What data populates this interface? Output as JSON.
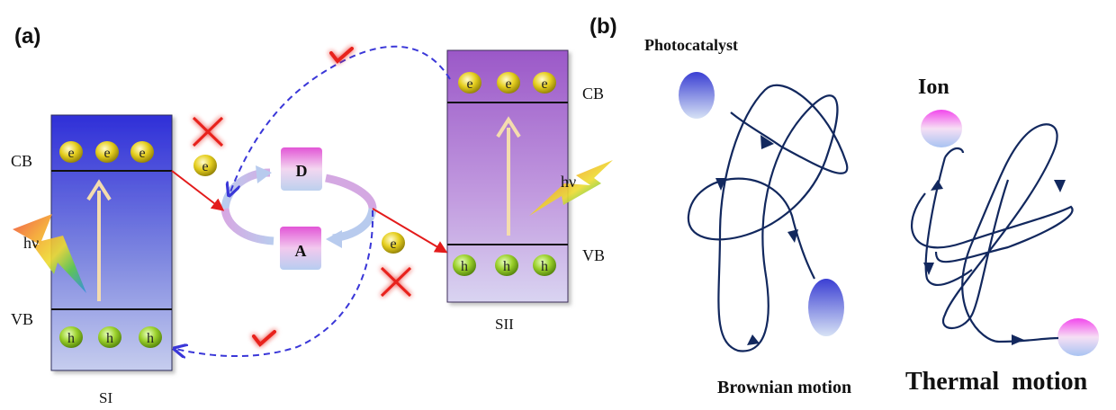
{
  "panel_a": {
    "label": "(a)",
    "SI": {
      "name": "SI",
      "cb_label": "CB",
      "vb_label": "VB",
      "electron": "e",
      "hole": "h",
      "photon": "hν"
    },
    "SII": {
      "name": "SII",
      "cb_label": "CB",
      "vb_label": "VB",
      "electron": "e",
      "hole": "h",
      "photon": "hν"
    },
    "donor": "D",
    "acceptor": "A",
    "free_electron": "e"
  },
  "panel_b": {
    "label": "(b)",
    "photocatalyst_label": "Photocatalyst",
    "brownian_label": "Brownian motion",
    "ion_label": "Ion",
    "thermal_label": "Thermal  motion"
  },
  "colors": {
    "check_mark": "#e8231c",
    "cross_mark": "#e8231c",
    "dashed_arrow": "#3a37d8",
    "transfer_arrow": "#e31b1b",
    "motion_path": "#12285e",
    "electron_ball": "#d8c312",
    "hole_ball": "#8fc829"
  }
}
